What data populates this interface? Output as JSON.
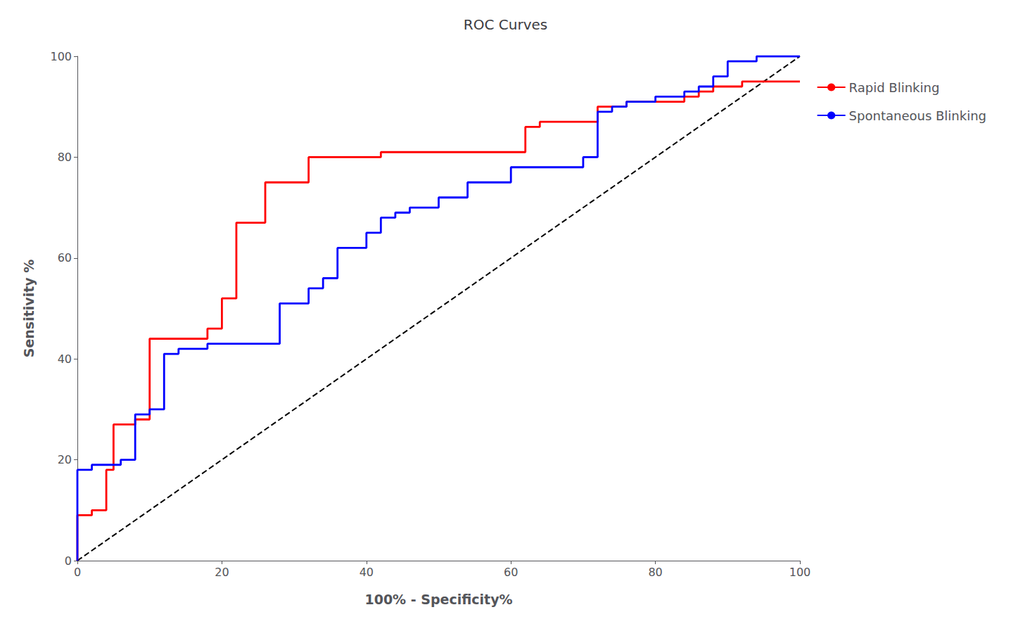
{
  "chart_data": {
    "type": "line",
    "title": "ROC Curves",
    "xlabel": "100% - Specificity%",
    "ylabel": "Sensitivity %",
    "xlim": [
      0,
      100
    ],
    "ylim": [
      0,
      100
    ],
    "xticks": [
      0,
      20,
      40,
      60,
      80,
      100
    ],
    "yticks": [
      0,
      20,
      40,
      60,
      80,
      100
    ],
    "grid": false,
    "legend": "upper right",
    "series": [
      {
        "color": "#000000",
        "line_style": "dashed",
        "x": [
          0,
          100
        ],
        "values": [
          0,
          100
        ]
      },
      {
        "name": "Rapid Blinking",
        "color": "#FF0000",
        "line_style": "solid",
        "x": [
          0,
          0,
          2,
          2,
          4,
          4,
          5,
          5,
          7,
          7,
          8,
          8,
          10,
          10,
          14,
          14,
          18,
          18,
          20,
          20,
          22,
          22,
          26,
          26,
          32,
          32,
          36,
          36,
          40,
          40,
          42,
          42,
          62,
          62,
          64,
          64,
          68,
          68,
          72,
          72,
          76,
          76,
          80,
          80,
          84,
          84,
          86,
          86,
          88,
          88,
          92,
          92,
          96,
          96,
          100
        ],
        "values": [
          0,
          9,
          9,
          10,
          10,
          18,
          18,
          27,
          27,
          27,
          27,
          28,
          28,
          44,
          44,
          44,
          44,
          46,
          46,
          52,
          52,
          67,
          67,
          75,
          75,
          80,
          80,
          80,
          80,
          80,
          80,
          81,
          81,
          86,
          86,
          87,
          87,
          87,
          87,
          90,
          90,
          91,
          91,
          91,
          91,
          92,
          92,
          93,
          93,
          94,
          94,
          95,
          95,
          95,
          95
        ]
      },
      {
        "name": "Spontaneous Blinking",
        "color": "#0000FF",
        "line_style": "solid",
        "x": [
          0,
          0,
          2,
          2,
          4,
          4,
          6,
          6,
          8,
          8,
          10,
          10,
          12,
          12,
          14,
          14,
          18,
          18,
          22,
          22,
          28,
          28,
          32,
          32,
          34,
          34,
          36,
          36,
          40,
          40,
          42,
          42,
          44,
          44,
          46,
          46,
          50,
          50,
          54,
          54,
          60,
          60,
          64,
          64,
          70,
          70,
          72,
          72,
          74,
          74,
          76,
          76,
          80,
          80,
          84,
          84,
          86,
          86,
          88,
          88,
          90,
          90,
          94,
          94,
          96,
          96,
          100
        ],
        "values": [
          0,
          18,
          18,
          19,
          19,
          19,
          19,
          20,
          20,
          29,
          29,
          30,
          30,
          41,
          41,
          42,
          42,
          43,
          43,
          43,
          43,
          51,
          51,
          54,
          54,
          56,
          56,
          62,
          62,
          65,
          65,
          68,
          68,
          69,
          69,
          70,
          70,
          72,
          72,
          75,
          75,
          78,
          78,
          78,
          78,
          80,
          80,
          89,
          89,
          90,
          90,
          91,
          91,
          92,
          92,
          93,
          93,
          94,
          94,
          96,
          96,
          99,
          99,
          100,
          100,
          100,
          100
        ]
      }
    ]
  }
}
